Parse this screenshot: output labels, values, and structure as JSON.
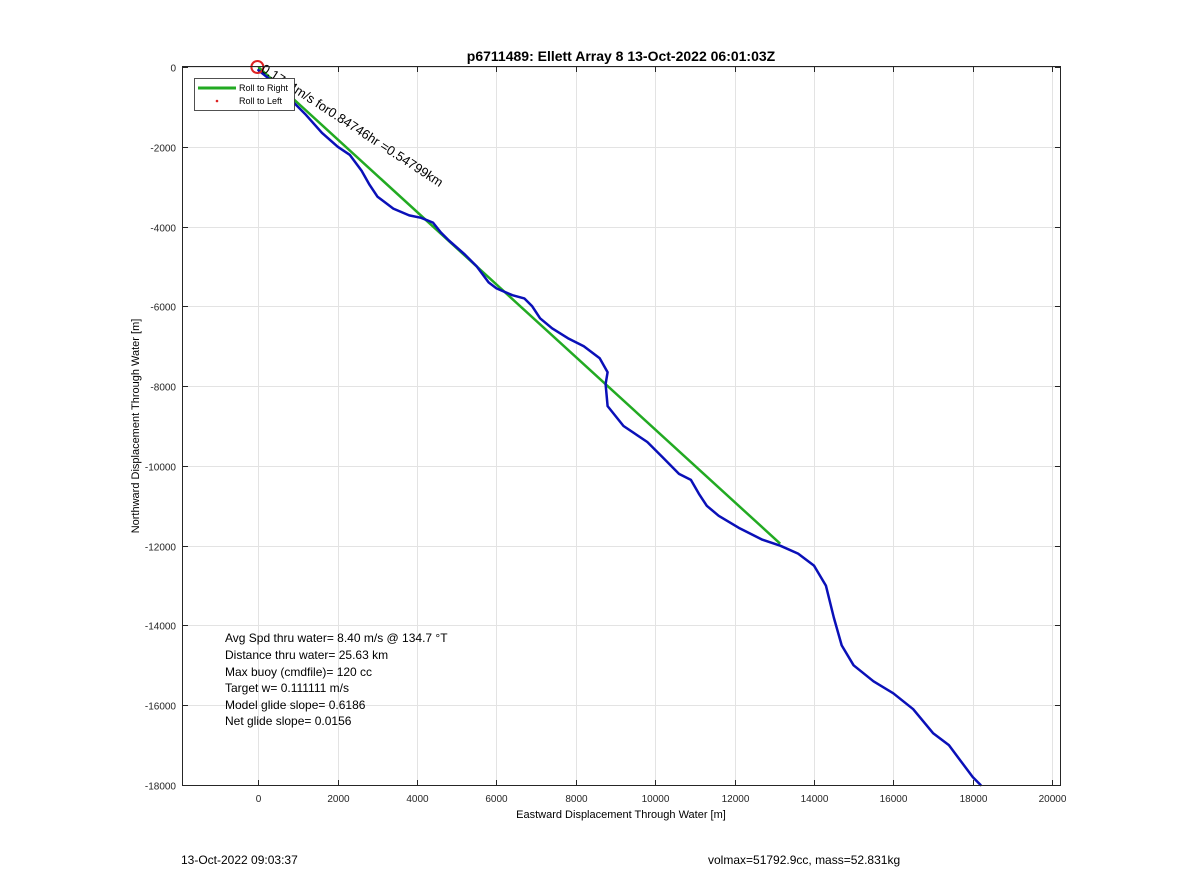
{
  "footer": {
    "left": "13-Oct-2022 09:03:37",
    "right": "volmax=51792.9cc, mass=52.831kg"
  },
  "colors": {
    "model": "#22aa22",
    "track": "#0a10b8",
    "start_marker": "#dd2222",
    "text": "#000000",
    "grid": "#e3e3e3"
  },
  "chart_data": {
    "type": "line",
    "title": "p6711489: Ellett Array 8 13-Oct-2022 06:01:03Z",
    "xlabel": "Eastward Displacement Through Water [m]",
    "ylabel": "Northward Displacement Through Water [m]",
    "xlim": [
      -1900,
      20200
    ],
    "ylim": [
      -18000,
      0
    ],
    "xticks": [
      0,
      2000,
      4000,
      6000,
      8000,
      10000,
      12000,
      14000,
      16000,
      18000,
      20000
    ],
    "yticks": [
      0,
      -2000,
      -4000,
      -6000,
      -8000,
      -10000,
      -12000,
      -14000,
      -16000,
      -18000
    ],
    "grid": true,
    "legend": {
      "placement": "top-left",
      "entries": [
        "Roll to Right",
        "Roll to Left"
      ]
    },
    "annotation": {
      "text": "0.1764m/s for0.84746hr =0.54799km",
      "x": 0,
      "y": 0,
      "rotation_deg": 33
    },
    "stats": [
      "Avg Spd thru water=  8.40 m/s @ 134.7 °T",
      "Distance thru water= 25.63 km",
      "Max buoy (cmdfile)= 120 cc",
      "Target w= 0.111111 m/s",
      "Model glide slope= 0.6186",
      "Net glide slope= 0.0156"
    ],
    "series": [
      {
        "name": "Roll to Right",
        "points": [
          [
            0,
            0
          ],
          [
            13150,
            -11950
          ]
        ]
      },
      {
        "points": [
          [
            0,
            -80
          ],
          [
            400,
            -400
          ],
          [
            800,
            -800
          ],
          [
            1200,
            -1200
          ],
          [
            1600,
            -1650
          ],
          [
            2000,
            -2000
          ],
          [
            2300,
            -2200
          ],
          [
            2600,
            -2600
          ],
          [
            2800,
            -2950
          ],
          [
            3000,
            -3250
          ],
          [
            3400,
            -3550
          ],
          [
            3800,
            -3720
          ],
          [
            4100,
            -3780
          ],
          [
            4400,
            -3900
          ],
          [
            4600,
            -4150
          ],
          [
            4800,
            -4350
          ],
          [
            5200,
            -4700
          ],
          [
            5500,
            -5000
          ],
          [
            5800,
            -5400
          ],
          [
            6000,
            -5550
          ],
          [
            6400,
            -5720
          ],
          [
            6700,
            -5800
          ],
          [
            6900,
            -6000
          ],
          [
            7100,
            -6300
          ],
          [
            7400,
            -6550
          ],
          [
            7800,
            -6800
          ],
          [
            8200,
            -7000
          ],
          [
            8600,
            -7300
          ],
          [
            8800,
            -7650
          ],
          [
            8750,
            -7950
          ],
          [
            8800,
            -8500
          ],
          [
            9200,
            -9000
          ],
          [
            9800,
            -9400
          ],
          [
            10200,
            -9800
          ],
          [
            10600,
            -10200
          ],
          [
            10900,
            -10350
          ],
          [
            11100,
            -10700
          ],
          [
            11300,
            -11000
          ],
          [
            11600,
            -11250
          ],
          [
            12100,
            -11550
          ],
          [
            12700,
            -11850
          ],
          [
            13150,
            -12000
          ],
          [
            13600,
            -12200
          ],
          [
            14000,
            -12500
          ],
          [
            14300,
            -13000
          ],
          [
            14500,
            -13800
          ],
          [
            14700,
            -14500
          ],
          [
            15000,
            -15000
          ],
          [
            15500,
            -15400
          ],
          [
            16000,
            -15700
          ],
          [
            16500,
            -16100
          ],
          [
            17000,
            -16700
          ],
          [
            17400,
            -17000
          ],
          [
            17700,
            -17400
          ],
          [
            18000,
            -17800
          ],
          [
            18200,
            -18000
          ]
        ]
      }
    ]
  }
}
